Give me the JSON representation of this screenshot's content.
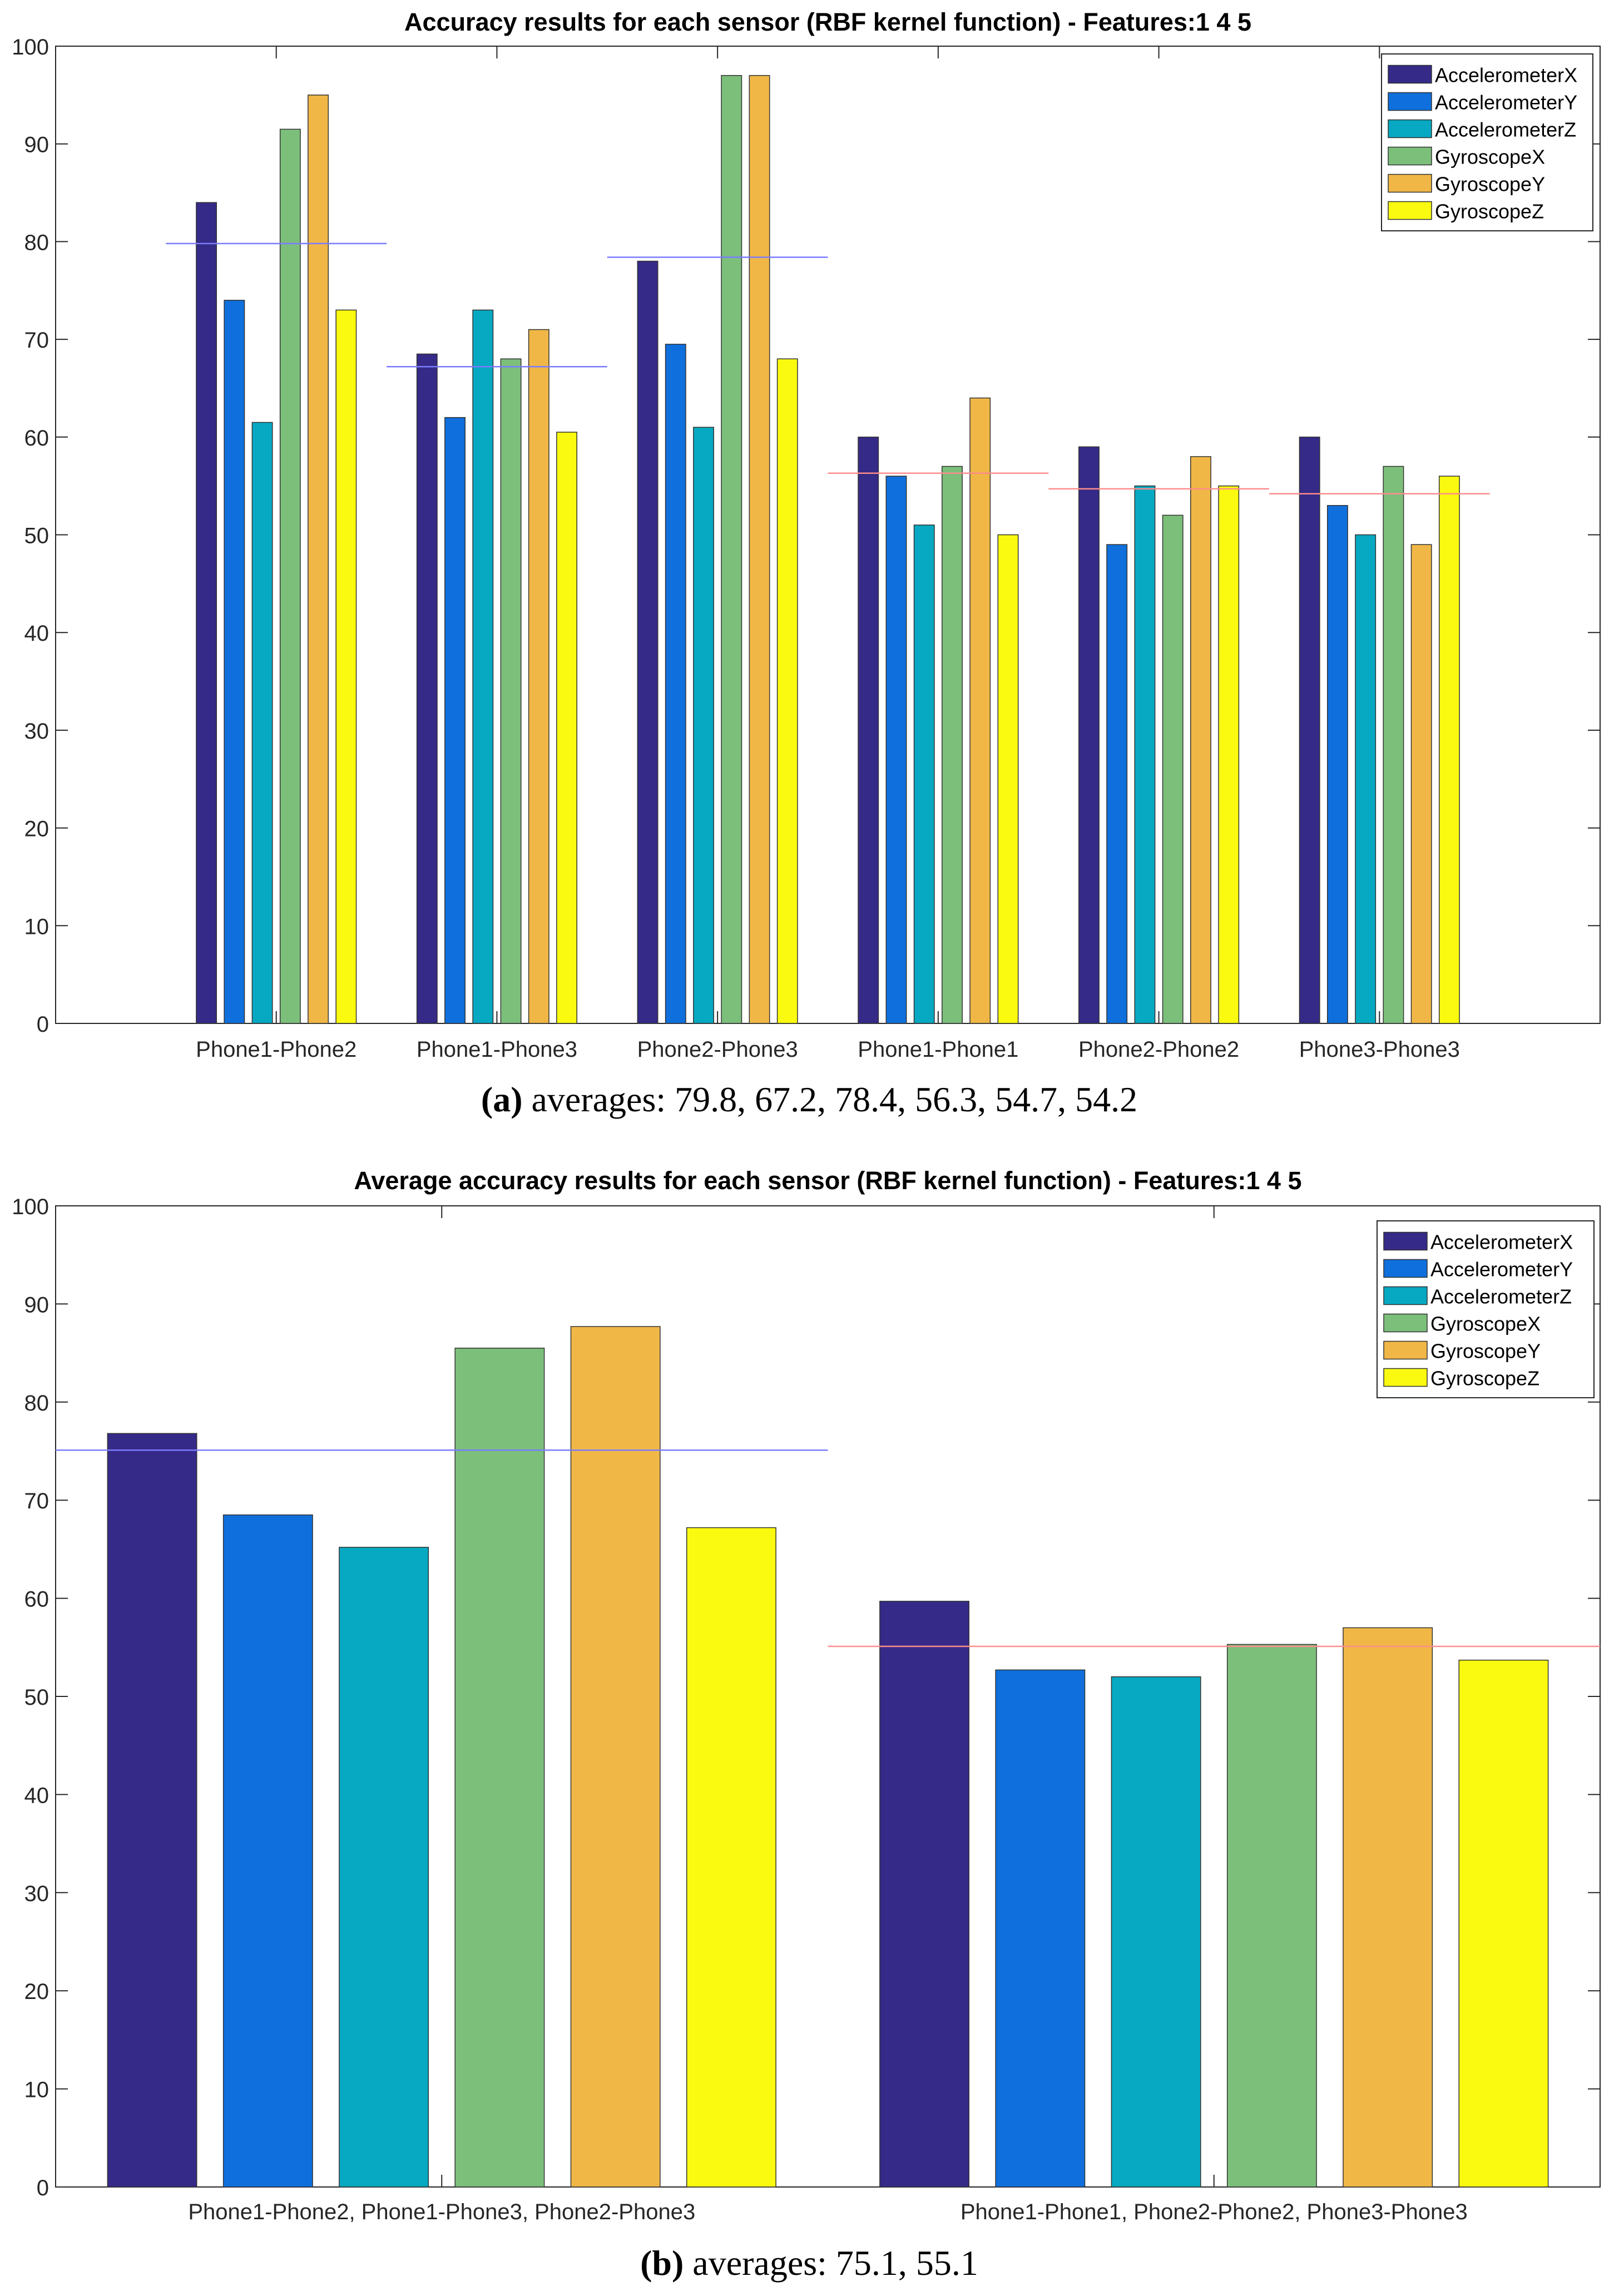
{
  "colors": {
    "series": [
      "#352a87",
      "#0f6fdc",
      "#06a9c1",
      "#7cbf7b",
      "#f0b747",
      "#f9fa0f"
    ],
    "avg_line_first": "#7b7bff",
    "avg_line_second": "#ff8c8c",
    "axis": "#262626",
    "bar_edge": "#333333"
  },
  "chart_data": [
    {
      "type": "bar",
      "title": "Accuracy results for each sensor (RBF kernel function) - Features:1  4  5",
      "caption_label": "(a)",
      "caption_text": "averages: 79.8, 67.2, 78.4, 56.3, 54.7, 54.2",
      "xlabel": "",
      "ylabel": "",
      "ylim": [
        0,
        100
      ],
      "yticks": [
        "0",
        "10",
        "20",
        "30",
        "40",
        "50",
        "60",
        "70",
        "80",
        "90",
        "100"
      ],
      "grid": false,
      "legend_position": "top-right",
      "categories": [
        "Phone1-Phone2",
        "Phone1-Phone3",
        "Phone2-Phone3",
        "Phone1-Phone1",
        "Phone2-Phone2",
        "Phone3-Phone3"
      ],
      "series": [
        {
          "name": "AccelerometerX",
          "values": [
            84,
            68.5,
            78,
            60,
            59,
            60
          ]
        },
        {
          "name": "AccelerometerY",
          "values": [
            74,
            62,
            69.5,
            56,
            49,
            53
          ]
        },
        {
          "name": "AccelerometerZ",
          "values": [
            61.5,
            73,
            61,
            51,
            55,
            50
          ]
        },
        {
          "name": "GyroscopeX",
          "values": [
            91.5,
            68,
            97,
            57,
            52,
            57
          ]
        },
        {
          "name": "GyroscopeY",
          "values": [
            95,
            71,
            97,
            64,
            58,
            49
          ]
        },
        {
          "name": "GyroscopeZ",
          "values": [
            73,
            60.5,
            68,
            50,
            55,
            56
          ]
        }
      ],
      "averages": [
        79.8,
        67.2,
        78.4,
        56.3,
        54.7,
        54.2
      ]
    },
    {
      "type": "bar",
      "title": "Average accuracy results for each sensor (RBF kernel function) - Features:1  4  5",
      "caption_label": "(b)",
      "caption_text": "averages: 75.1, 55.1",
      "xlabel": "",
      "ylabel": "",
      "ylim": [
        0,
        100
      ],
      "yticks": [
        "0",
        "10",
        "20",
        "30",
        "40",
        "50",
        "60",
        "70",
        "80",
        "90",
        "100"
      ],
      "grid": false,
      "legend_position": "top-right",
      "categories": [
        "Phone1-Phone2, Phone1-Phone3, Phone2-Phone3",
        "Phone1-Phone1, Phone2-Phone2, Phone3-Phone3"
      ],
      "series": [
        {
          "name": "AccelerometerX",
          "values": [
            76.8,
            59.7
          ]
        },
        {
          "name": "AccelerometerY",
          "values": [
            68.5,
            52.7
          ]
        },
        {
          "name": "AccelerometerZ",
          "values": [
            65.2,
            52
          ]
        },
        {
          "name": "GyroscopeX",
          "values": [
            85.5,
            55.3
          ]
        },
        {
          "name": "GyroscopeY",
          "values": [
            87.7,
            57
          ]
        },
        {
          "name": "GyroscopeZ",
          "values": [
            67.2,
            53.7
          ]
        }
      ],
      "averages": [
        75.1,
        55.1
      ]
    }
  ]
}
